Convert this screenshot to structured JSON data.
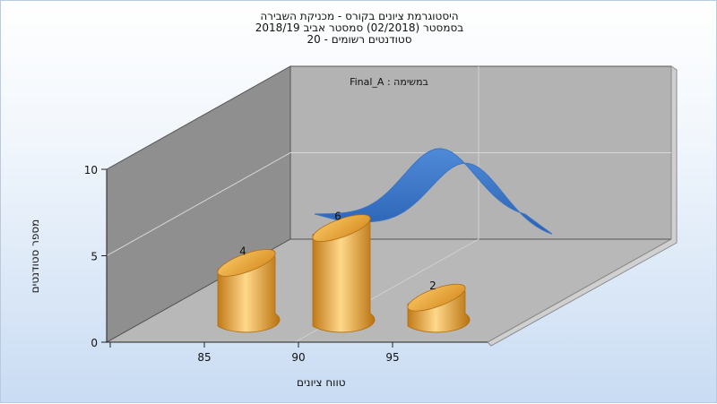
{
  "chart_data": {
    "type": "bar",
    "title": [
      "היסטוגרמת ציונים בקורס - מכניקת השבירה",
      "בסמסטר  (02/2018)  סמסטר אביב 2018/19",
      "סטודנטים רשומים - 20"
    ],
    "annotation": "במשימה : Final_A",
    "categories": [
      "85",
      "90",
      "95"
    ],
    "values": [
      4,
      6,
      2
    ],
    "data_labels": [
      "4",
      "6",
      "2"
    ],
    "ylim": [
      0,
      10
    ],
    "yticks": [
      "0",
      "5",
      "10"
    ],
    "xticks": [
      "85",
      "90",
      "95"
    ],
    "xlabel": "טווח ציונים",
    "ylabel": "מספר סטודנטים",
    "overlay_curve": {
      "type": "line",
      "shape": "normal-distribution-curve",
      "color": "#3a74c4"
    },
    "bar_color": "#e7a43c",
    "grid": true,
    "view": "3d"
  }
}
